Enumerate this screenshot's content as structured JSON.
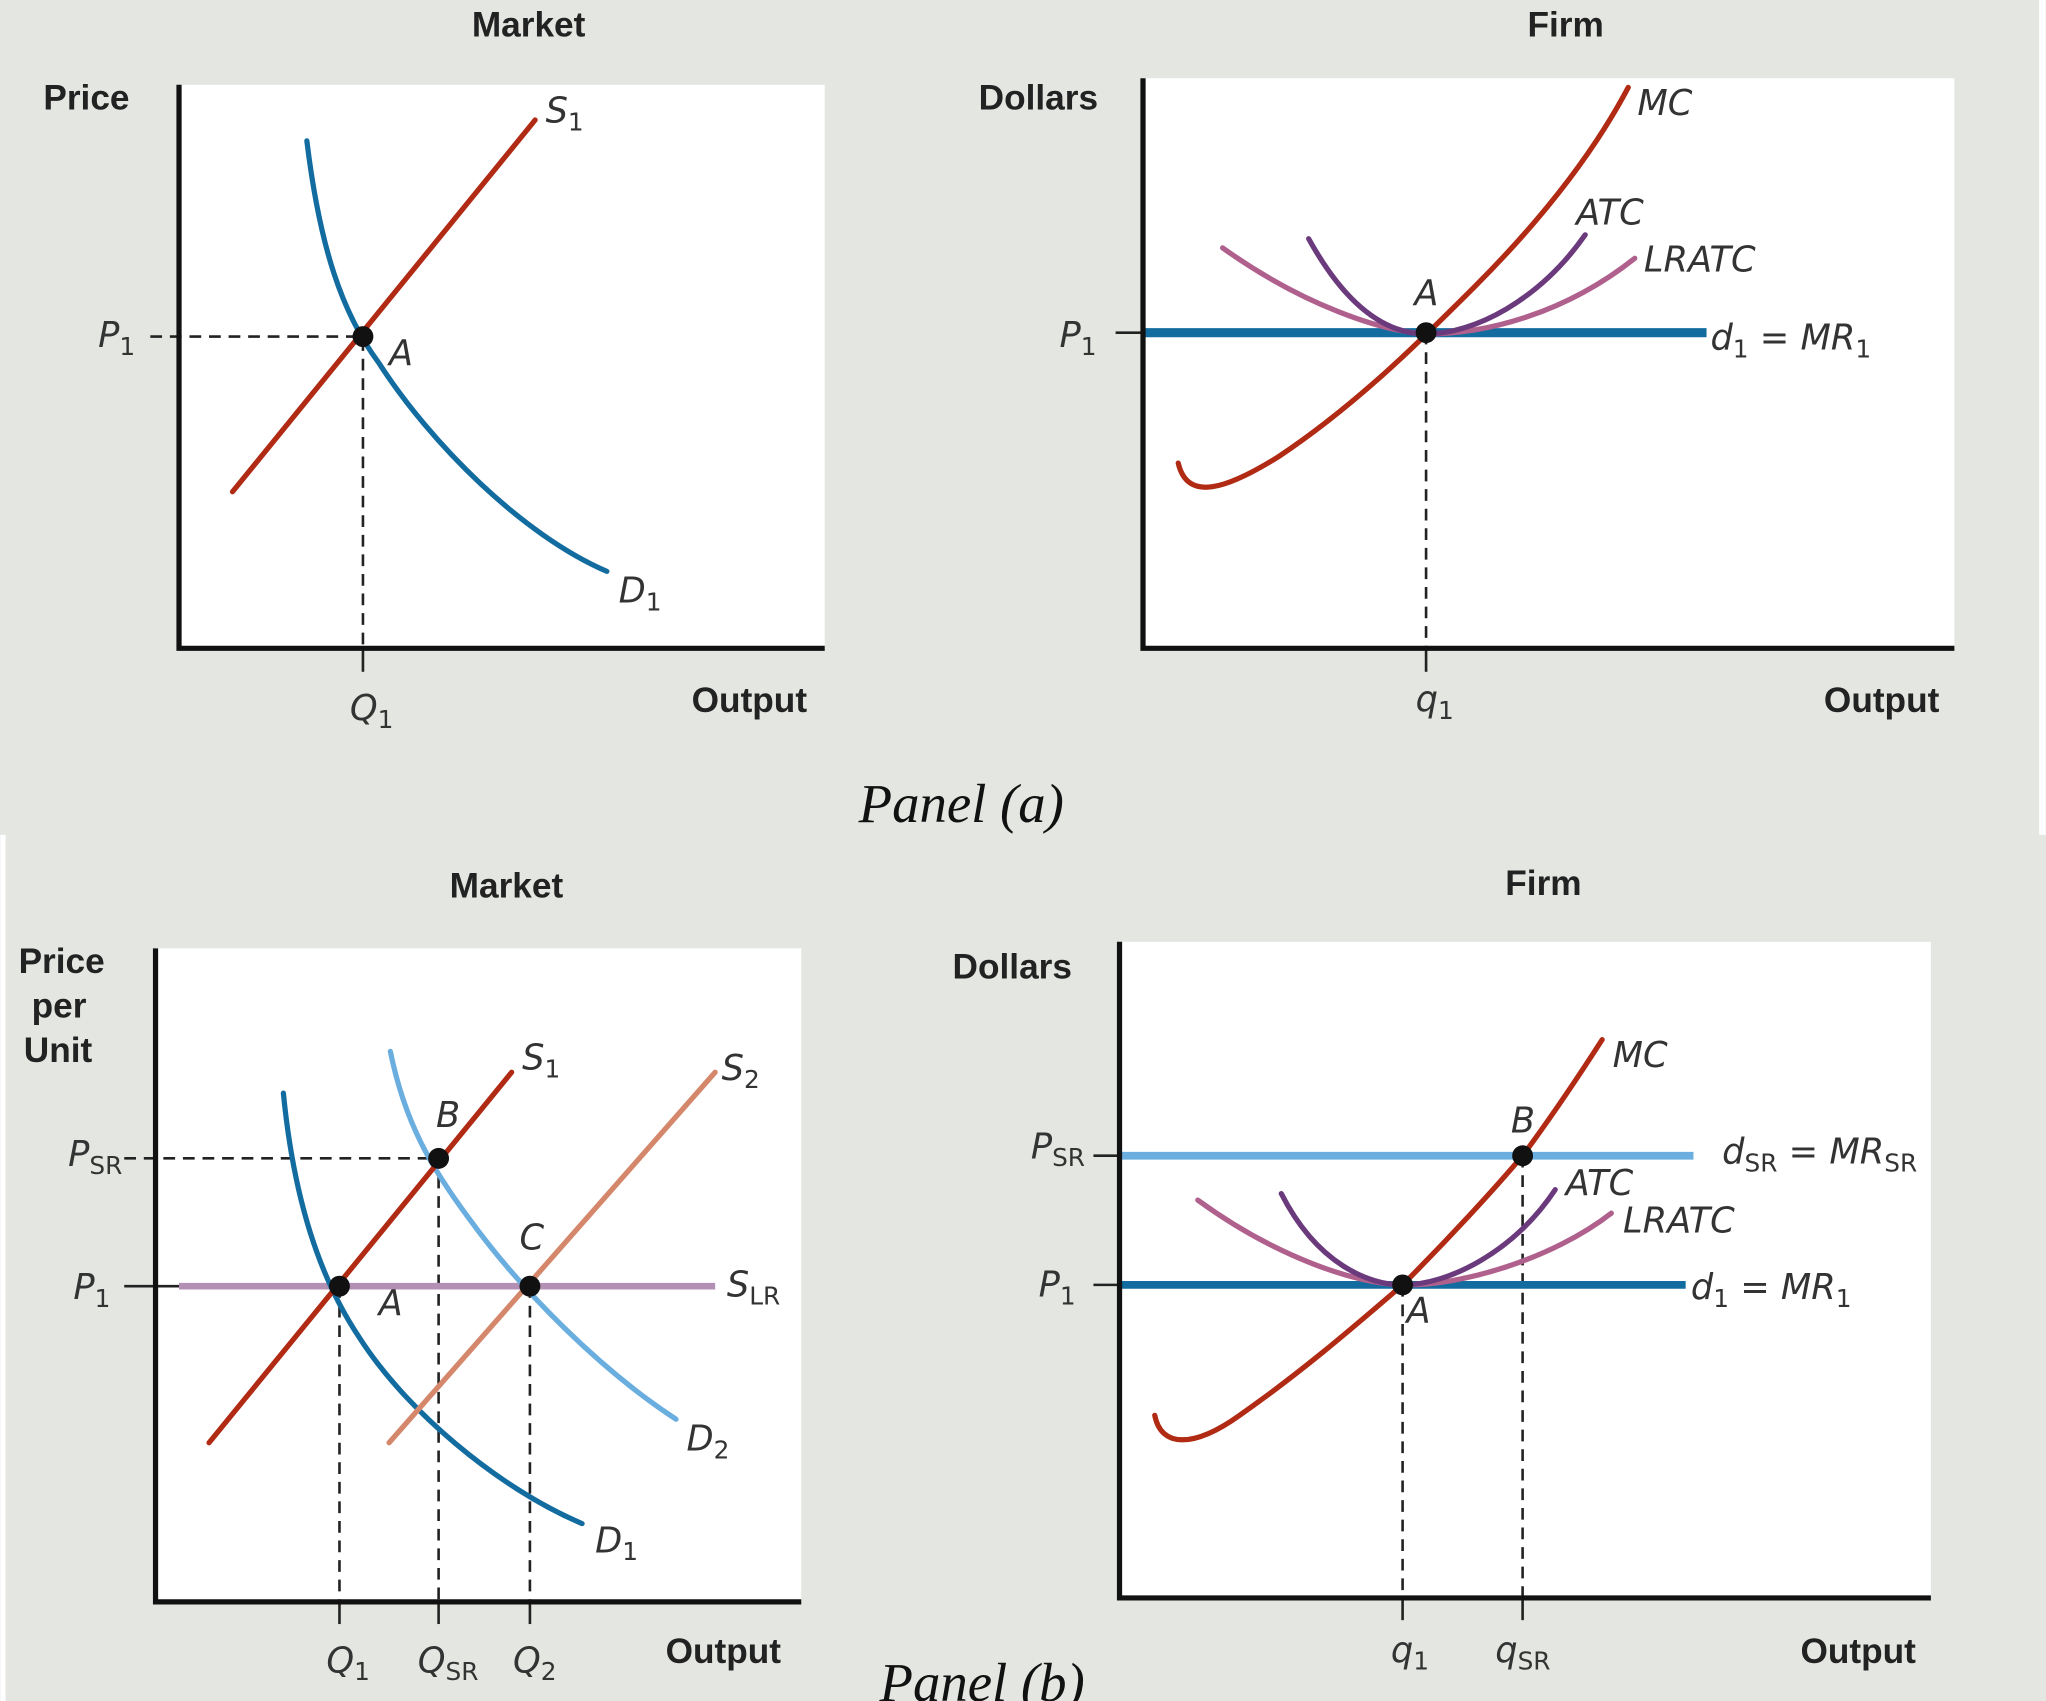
{
  "colors": {
    "background": "#e3e6e1",
    "supply": "#b02a14",
    "supply2": "#d4876a",
    "demand1": "#136c9f",
    "demand2": "#6aaee0",
    "atc": "#6b3a7d",
    "lratc": "#b0608c",
    "slr": "#b48fb4"
  },
  "panel_a": {
    "caption": "Panel (a)",
    "market": {
      "title": "Market",
      "ylabel": "Price",
      "xlabel": "Output",
      "s1": "S",
      "s1_sub": "1",
      "d1": "D",
      "d1_sub": "1",
      "p1": "P",
      "p1_sub": "1",
      "q1": "Q",
      "q1_sub": "1",
      "point_a": "A"
    },
    "firm": {
      "title": "Firm",
      "ylabel": "Dollars",
      "xlabel": "Output",
      "mc": "MC",
      "atc": "ATC",
      "lratc": "LRATC",
      "d1": "d",
      "d1_sub": "1",
      "mr_eq": " = MR",
      "mr_sub": "1",
      "p1": "P",
      "p1_sub": "1",
      "q1": "q",
      "q1_sub": "1",
      "point_a": "A"
    }
  },
  "panel_b": {
    "caption": "Panel (b)",
    "market": {
      "title": "Market",
      "ylabel_1": "Price",
      "ylabel_2": "per",
      "ylabel_3": "Unit",
      "xlabel": "Output",
      "s1": "S",
      "s1_sub": "1",
      "s2": "S",
      "s2_sub": "2",
      "slr": "S",
      "slr_sub": "LR",
      "d1": "D",
      "d1_sub": "1",
      "d2": "D",
      "d2_sub": "2",
      "psr": "P",
      "psr_sub": "SR",
      "p1": "P",
      "p1_sub": "1",
      "q1": "Q",
      "q1_sub": "1",
      "qsr": "Q",
      "qsr_sub": "SR",
      "q2": "Q",
      "q2_sub": "2",
      "point_a": "A",
      "point_b": "B",
      "point_c": "C"
    },
    "firm": {
      "title": "Firm",
      "ylabel": "Dollars",
      "xlabel": "Output",
      "mc": "MC",
      "atc": "ATC",
      "lratc": "LRATC",
      "dsr": "d",
      "dsr_sub": "SR",
      "mrsr_eq": " = MR",
      "mrsr_sub": "SR",
      "d1": "d",
      "d1_sub": "1",
      "mr_eq": " = MR",
      "mr_sub": "1",
      "psr": "P",
      "psr_sub": "SR",
      "p1": "P",
      "p1_sub": "1",
      "q1": "q",
      "q1_sub": "1",
      "qsr": "q",
      "qsr_sub": "SR",
      "point_a": "A",
      "point_b": "B"
    }
  }
}
